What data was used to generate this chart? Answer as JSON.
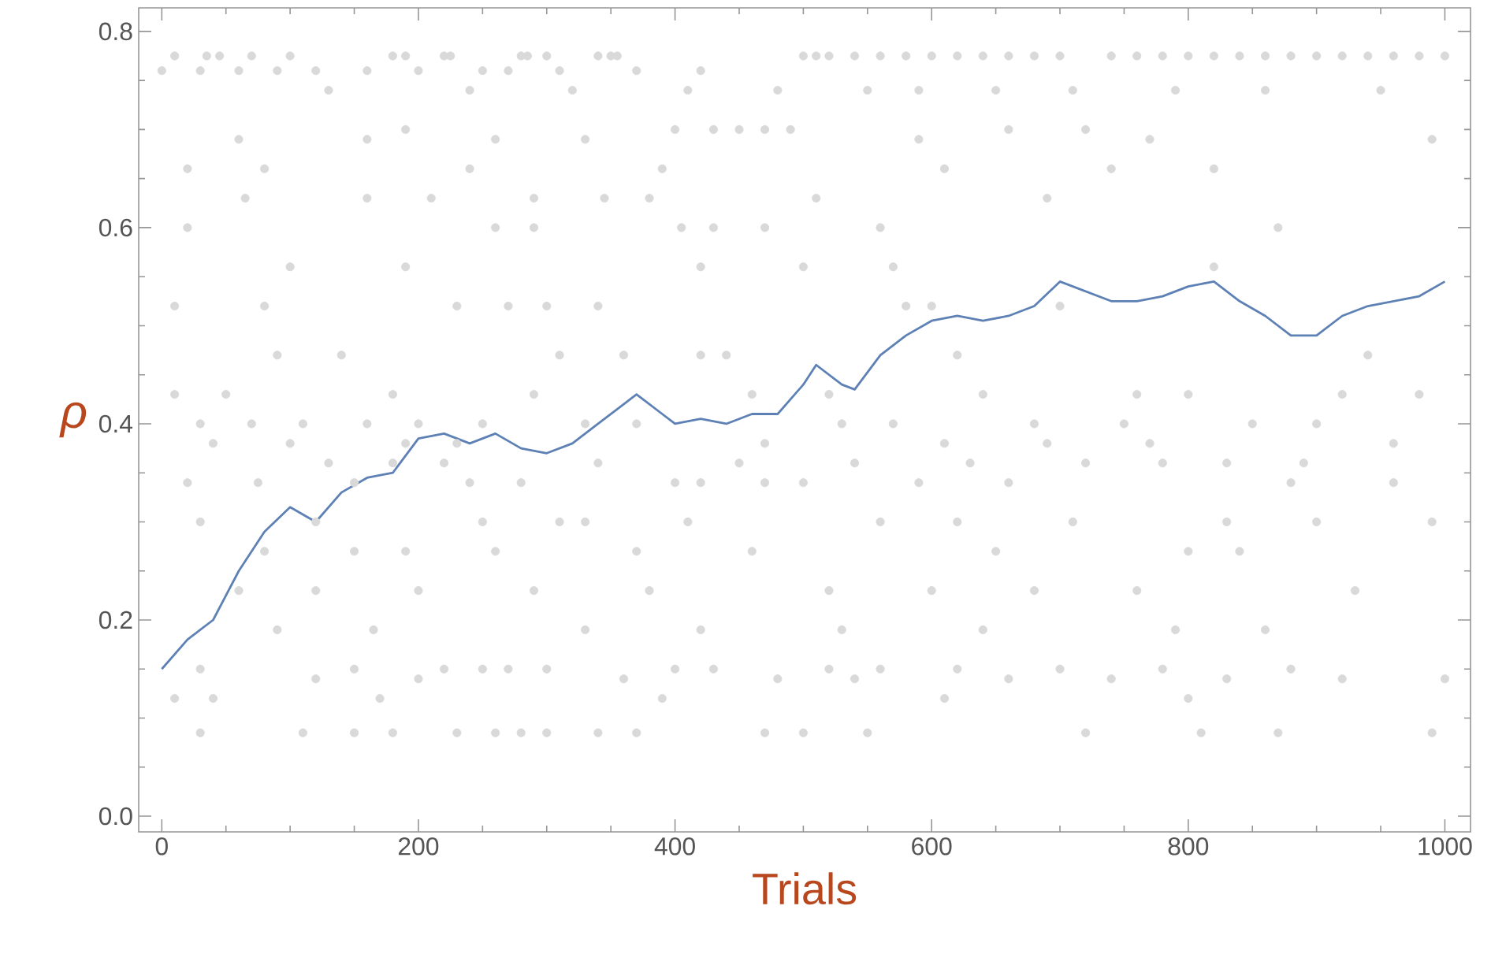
{
  "chart_data": {
    "type": "scatter",
    "xlabel": "Trials",
    "ylabel": "ρ",
    "xlim": [
      -18,
      1020
    ],
    "ylim": [
      -0.016,
      0.824
    ],
    "xticks": [
      0,
      200,
      400,
      600,
      800,
      1000
    ],
    "yticks": [
      {
        "value": 0,
        "label": "0.0"
      },
      {
        "value": 0.2,
        "label": "0.2"
      },
      {
        "value": 0.4,
        "label": "0.4"
      },
      {
        "value": 0.6,
        "label": "0.6"
      },
      {
        "value": 0.8,
        "label": "0.8"
      }
    ],
    "series": [
      {
        "color": "#d9d9d9",
        "marker": "circle",
        "x": [
          10,
          35,
          45,
          70,
          100,
          180,
          190,
          220,
          225,
          280,
          285,
          300,
          340,
          350,
          355,
          500,
          510,
          520,
          540,
          560,
          580,
          600,
          620,
          640,
          660,
          680,
          700,
          740,
          760,
          780,
          800,
          820,
          840,
          860,
          880,
          900,
          920,
          940,
          960,
          980,
          1000,
          0,
          30,
          60,
          90,
          120,
          160,
          200,
          250,
          270,
          310,
          370,
          420,
          130,
          240,
          320,
          410,
          480,
          550,
          590,
          650,
          710,
          790,
          860,
          950,
          190,
          400,
          430,
          450,
          470,
          490,
          660,
          720,
          60,
          160,
          260,
          330,
          590,
          770,
          990,
          20,
          80,
          240,
          390,
          610,
          740,
          820,
          65,
          160,
          210,
          290,
          345,
          380,
          510,
          690,
          20,
          260,
          290,
          405,
          430,
          470,
          560,
          870,
          100,
          190,
          420,
          500,
          570,
          820,
          10,
          80,
          230,
          270,
          300,
          340,
          580,
          600,
          700,
          90,
          140,
          310,
          360,
          420,
          440,
          620,
          940,
          10,
          50,
          180,
          290,
          460,
          520,
          640,
          760,
          800,
          920,
          980,
          30,
          70,
          110,
          160,
          200,
          250,
          330,
          370,
          530,
          570,
          680,
          750,
          850,
          900,
          40,
          100,
          190,
          230,
          470,
          610,
          690,
          770,
          960,
          130,
          180,
          220,
          340,
          450,
          540,
          630,
          720,
          780,
          830,
          890,
          20,
          75,
          150,
          240,
          280,
          400,
          420,
          470,
          500,
          590,
          660,
          880,
          960,
          30,
          120,
          250,
          310,
          330,
          410,
          560,
          620,
          710,
          830,
          900,
          990,
          80,
          150,
          190,
          260,
          370,
          460,
          650,
          800,
          840,
          60,
          120,
          200,
          290,
          380,
          520,
          600,
          680,
          760,
          930,
          90,
          165,
          330,
          420,
          530,
          640,
          790,
          860,
          30,
          150,
          220,
          250,
          270,
          300,
          400,
          430,
          520,
          560,
          620,
          700,
          780,
          880,
          120,
          200,
          360,
          480,
          540,
          660,
          740,
          830,
          920,
          1000,
          10,
          40,
          170,
          390,
          610,
          800,
          30,
          110,
          150,
          180,
          230,
          260,
          280,
          300,
          340,
          370,
          470,
          500,
          550,
          720,
          810,
          870,
          990
        ],
        "values": [
          0.775,
          0.775,
          0.775,
          0.775,
          0.775,
          0.775,
          0.775,
          0.775,
          0.775,
          0.775,
          0.775,
          0.775,
          0.775,
          0.775,
          0.775,
          0.775,
          0.775,
          0.775,
          0.775,
          0.775,
          0.775,
          0.775,
          0.775,
          0.775,
          0.775,
          0.775,
          0.775,
          0.775,
          0.775,
          0.775,
          0.775,
          0.775,
          0.775,
          0.775,
          0.775,
          0.775,
          0.775,
          0.775,
          0.775,
          0.775,
          0.775,
          0.76,
          0.76,
          0.76,
          0.76,
          0.76,
          0.76,
          0.76,
          0.76,
          0.76,
          0.76,
          0.76,
          0.76,
          0.74,
          0.74,
          0.74,
          0.74,
          0.74,
          0.74,
          0.74,
          0.74,
          0.74,
          0.74,
          0.74,
          0.74,
          0.7,
          0.7,
          0.7,
          0.7,
          0.7,
          0.7,
          0.7,
          0.7,
          0.69,
          0.69,
          0.69,
          0.69,
          0.69,
          0.69,
          0.69,
          0.66,
          0.66,
          0.66,
          0.66,
          0.66,
          0.66,
          0.66,
          0.63,
          0.63,
          0.63,
          0.63,
          0.63,
          0.63,
          0.63,
          0.63,
          0.6,
          0.6,
          0.6,
          0.6,
          0.6,
          0.6,
          0.6,
          0.6,
          0.56,
          0.56,
          0.56,
          0.56,
          0.56,
          0.56,
          0.52,
          0.52,
          0.52,
          0.52,
          0.52,
          0.52,
          0.52,
          0.52,
          0.52,
          0.47,
          0.47,
          0.47,
          0.47,
          0.47,
          0.47,
          0.47,
          0.47,
          0.43,
          0.43,
          0.43,
          0.43,
          0.43,
          0.43,
          0.43,
          0.43,
          0.43,
          0.43,
          0.43,
          0.4,
          0.4,
          0.4,
          0.4,
          0.4,
          0.4,
          0.4,
          0.4,
          0.4,
          0.4,
          0.4,
          0.4,
          0.4,
          0.4,
          0.38,
          0.38,
          0.38,
          0.38,
          0.38,
          0.38,
          0.38,
          0.38,
          0.38,
          0.36,
          0.36,
          0.36,
          0.36,
          0.36,
          0.36,
          0.36,
          0.36,
          0.36,
          0.36,
          0.36,
          0.34,
          0.34,
          0.34,
          0.34,
          0.34,
          0.34,
          0.34,
          0.34,
          0.34,
          0.34,
          0.34,
          0.34,
          0.34,
          0.3,
          0.3,
          0.3,
          0.3,
          0.3,
          0.3,
          0.3,
          0.3,
          0.3,
          0.3,
          0.3,
          0.3,
          0.27,
          0.27,
          0.27,
          0.27,
          0.27,
          0.27,
          0.27,
          0.27,
          0.27,
          0.23,
          0.23,
          0.23,
          0.23,
          0.23,
          0.23,
          0.23,
          0.23,
          0.23,
          0.23,
          0.19,
          0.19,
          0.19,
          0.19,
          0.19,
          0.19,
          0.19,
          0.19,
          0.15,
          0.15,
          0.15,
          0.15,
          0.15,
          0.15,
          0.15,
          0.15,
          0.15,
          0.15,
          0.15,
          0.15,
          0.15,
          0.15,
          0.14,
          0.14,
          0.14,
          0.14,
          0.14,
          0.14,
          0.14,
          0.14,
          0.14,
          0.14,
          0.12,
          0.12,
          0.12,
          0.12,
          0.12,
          0.12,
          0.085,
          0.085,
          0.085,
          0.085,
          0.085,
          0.085,
          0.085,
          0.085,
          0.085,
          0.085,
          0.085,
          0.085,
          0.085,
          0.085,
          0.085,
          0.085,
          0.085
        ]
      },
      {
        "type": "line",
        "color": "#5e81b5",
        "marker": "none",
        "line_style": "solid",
        "x": [
          0,
          20,
          40,
          60,
          80,
          100,
          120,
          140,
          160,
          180,
          200,
          220,
          240,
          260,
          280,
          300,
          320,
          340,
          360,
          370,
          390,
          400,
          420,
          440,
          460,
          480,
          500,
          510,
          530,
          540,
          560,
          580,
          600,
          620,
          640,
          660,
          680,
          700,
          720,
          740,
          760,
          780,
          800,
          820,
          840,
          860,
          880,
          900,
          920,
          940,
          960,
          980,
          1000
        ],
        "values": [
          0.15,
          0.18,
          0.2,
          0.25,
          0.29,
          0.315,
          0.3,
          0.33,
          0.345,
          0.35,
          0.385,
          0.39,
          0.38,
          0.39,
          0.375,
          0.37,
          0.38,
          0.4,
          0.42,
          0.43,
          0.41,
          0.4,
          0.405,
          0.4,
          0.41,
          0.41,
          0.44,
          0.46,
          0.44,
          0.435,
          0.47,
          0.49,
          0.505,
          0.51,
          0.505,
          0.51,
          0.52,
          0.545,
          0.535,
          0.525,
          0.525,
          0.53,
          0.54,
          0.545,
          0.525,
          0.51,
          0.49,
          0.49,
          0.51,
          0.52,
          0.525,
          0.53,
          0.545
        ]
      }
    ]
  }
}
